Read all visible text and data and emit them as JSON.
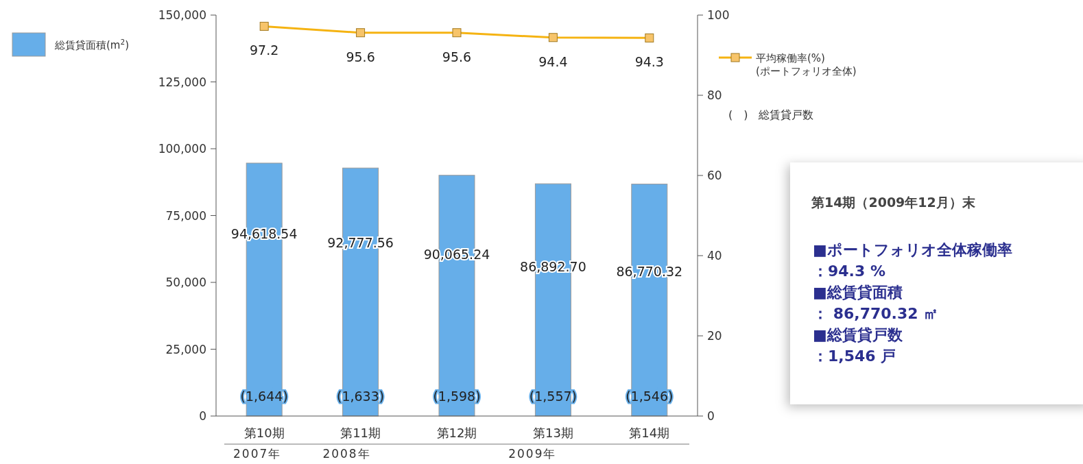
{
  "chart_data": [
    {
      "type": "bar",
      "categories": [
        "第10期",
        "第11期",
        "第12期",
        "第13期",
        "第14期"
      ],
      "series": [
        {
          "name": "総賃貸面積(m$^{2}$)",
          "type": "bar",
          "color": "#66aee9",
          "values": [
            94618.54,
            92777.56,
            90065.24,
            86892.7,
            86770.32
          ],
          "value_labels": [
            "94,618.54",
            "92,777.56",
            "90,065.24",
            "86,892.70",
            "86,770.32"
          ]
        },
        {
          "name": "平均稼働率(%)\n(ポートフォリオ全体)",
          "type": "line",
          "axis": "y2",
          "color": "#f5b312",
          "marker": "square",
          "values": [
            97.2,
            95.6,
            95.6,
            94.4,
            94.3
          ],
          "value_labels": [
            "97.2",
            "95.6",
            "95.6",
            "94.4",
            "94.3"
          ]
        }
      ],
      "ylim": [
        0,
        150000
      ],
      "yticks": [
        0,
        {
          "value": 25000,
          "label": "25,000"
        },
        {
          "value": 50000,
          "label": "50,000"
        },
        {
          "value": 75000,
          "label": "75,000"
        },
        {
          "value": 100000,
          "label": "100,000"
        },
        {
          "value": 125000,
          "label": "125,000"
        },
        {
          "value": 150000,
          "label": "150,000"
        }
      ],
      "y2lim": [
        0,
        100
      ],
      "y2ticks": [
        0,
        20,
        40,
        60,
        80,
        100
      ],
      "grid": false,
      "legend": "top left",
      "annotations": [
        "(1,644)",
        "(1,633)",
        "(1,598)",
        "(1,557)",
        "(1,546)",
        "2007年",
        "2008年",
        "2009年",
        "(　)　総賃貸戸数"
      ]
    },
    {
      "type": "other",
      "title": "第14期（2009年12月）末",
      "annotations": [
        "■ポートフォリオ全体稼働率",
        "：94.3 %",
        "■総賃貸面積",
        "： 86,770.32 ㎡",
        "■総賃貸戸数",
        "：1,546 戸"
      ]
    }
  ]
}
